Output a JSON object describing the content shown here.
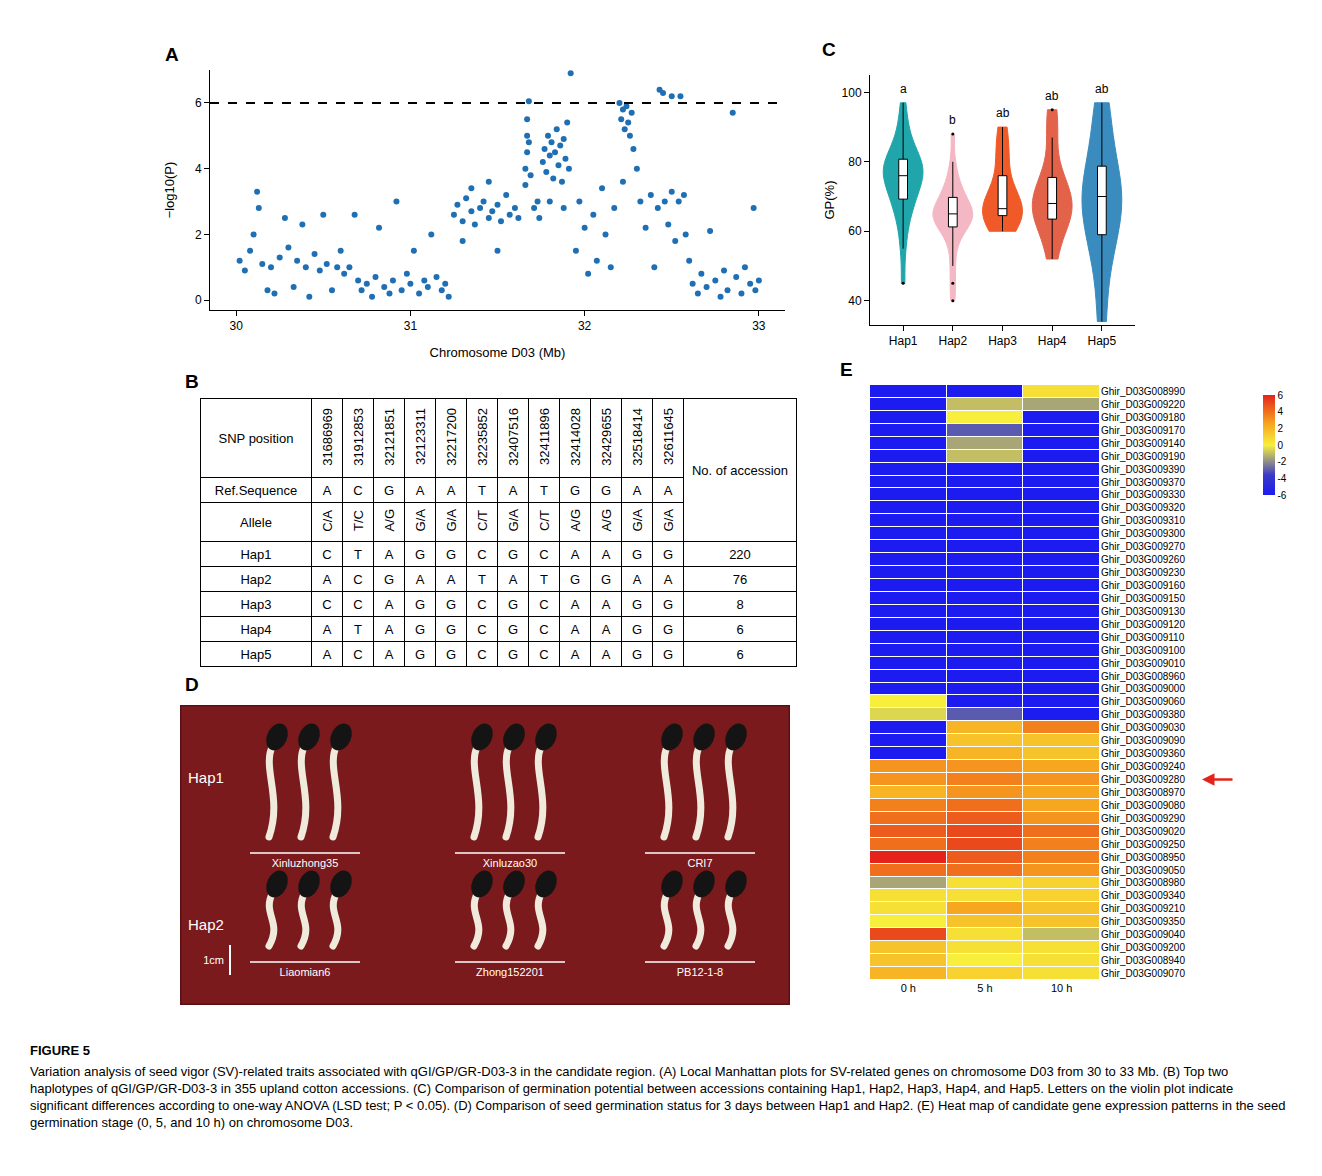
{
  "chart_data": [
    {
      "panel_label": "A",
      "type": "scatter",
      "x": [
        30.02,
        30.05,
        30.08,
        30.1,
        30.12,
        30.13,
        30.15,
        30.18,
        30.2,
        30.22,
        30.25,
        30.28,
        30.3,
        30.33,
        30.35,
        30.38,
        30.4,
        30.42,
        30.45,
        30.48,
        30.5,
        30.52,
        30.55,
        30.58,
        30.6,
        30.62,
        30.65,
        30.68,
        30.7,
        30.72,
        30.75,
        30.78,
        30.8,
        30.82,
        30.85,
        30.88,
        30.9,
        30.92,
        30.95,
        30.98,
        31.0,
        31.02,
        31.05,
        31.08,
        31.1,
        31.12,
        31.15,
        31.18,
        31.2,
        31.22,
        31.25,
        31.27,
        31.3,
        31.32,
        31.35,
        31.37,
        31.4,
        31.42,
        31.45,
        31.47,
        31.5,
        31.52,
        31.55,
        31.57,
        31.6,
        31.62,
        31.3,
        31.45,
        31.5,
        31.35,
        31.66,
        31.66,
        31.67,
        31.67,
        31.67,
        31.68,
        31.68,
        31.69,
        31.71,
        31.73,
        31.74,
        31.76,
        31.77,
        31.78,
        31.79,
        31.8,
        31.81,
        31.82,
        31.83,
        31.84,
        31.85,
        31.86,
        31.87,
        31.88,
        31.89,
        31.9,
        31.91,
        31.92,
        31.88,
        31.8,
        31.95,
        31.97,
        32.0,
        32.02,
        32.05,
        32.07,
        32.1,
        32.12,
        32.15,
        32.17,
        32.2,
        32.21,
        32.22,
        32.23,
        32.24,
        32.25,
        32.26,
        32.27,
        32.28,
        32.22,
        32.3,
        32.32,
        32.35,
        32.38,
        32.4,
        32.42,
        32.43,
        32.45,
        32.46,
        32.48,
        32.5,
        32.5,
        32.52,
        32.54,
        32.55,
        32.57,
        32.58,
        32.6,
        32.62,
        32.65,
        32.67,
        32.7,
        32.72,
        32.75,
        32.78,
        32.8,
        32.82,
        32.85,
        32.87,
        32.9,
        32.92,
        32.95,
        32.97,
        32.98,
        33.0
      ],
      "values": [
        1.2,
        0.9,
        1.5,
        2.0,
        3.3,
        2.8,
        1.1,
        0.3,
        1.0,
        0.2,
        1.3,
        2.5,
        1.6,
        0.4,
        1.2,
        2.3,
        1.0,
        0.1,
        1.4,
        0.9,
        2.6,
        1.1,
        0.3,
        1.0,
        1.5,
        0.8,
        1.0,
        2.6,
        0.6,
        0.3,
        0.5,
        0.1,
        0.7,
        2.2,
        0.4,
        0.2,
        0.6,
        3.0,
        0.3,
        0.8,
        0.5,
        1.5,
        0.2,
        0.6,
        0.4,
        2.0,
        0.7,
        0.3,
        0.5,
        0.1,
        2.6,
        2.9,
        2.4,
        3.1,
        2.7,
        2.3,
        2.8,
        3.0,
        2.5,
        2.7,
        2.9,
        2.4,
        3.2,
        2.6,
        2.8,
        2.5,
        1.8,
        3.6,
        1.5,
        3.4,
        3.5,
        4.0,
        4.5,
        5.0,
        5.5,
        6.05,
        4.8,
        3.8,
        2.8,
        3.0,
        2.5,
        4.2,
        4.6,
        3.9,
        5.0,
        4.4,
        4.8,
        3.7,
        4.5,
        5.2,
        4.1,
        4.7,
        3.6,
        4.9,
        4.3,
        5.4,
        4.0,
        6.9,
        2.8,
        3.0,
        1.5,
        3.0,
        2.2,
        0.8,
        2.6,
        1.2,
        3.4,
        2.0,
        1.0,
        2.8,
        6.0,
        5.5,
        5.8,
        5.2,
        5.9,
        5.4,
        5.0,
        5.7,
        4.6,
        3.6,
        4.0,
        3.0,
        2.2,
        3.2,
        1.0,
        2.8,
        6.4,
        6.3,
        3.0,
        2.3,
        6.2,
        3.3,
        1.8,
        3.0,
        6.2,
        3.2,
        2.0,
        1.2,
        0.5,
        0.2,
        0.8,
        0.4,
        2.1,
        0.6,
        0.1,
        0.9,
        0.3,
        5.7,
        0.7,
        0.2,
        1.0,
        0.5,
        2.8,
        0.3,
        0.6
      ],
      "color": "#1f6fb4",
      "marker": "circle",
      "xlabel": "Chromosome D03 (Mb)",
      "ylabel": "−log10(P)",
      "xlim": [
        29.85,
        33.15
      ],
      "xticks": [
        30,
        31,
        32,
        33
      ],
      "ylim": [
        -0.3,
        7.0
      ],
      "yticks": [
        0,
        2,
        4,
        6
      ],
      "grid": false,
      "reference_line": {
        "value": 6,
        "line_style": "dashed"
      }
    },
    {
      "panel_label": "C",
      "type": "violin",
      "categories": [
        "Hap1",
        "Hap2",
        "Hap3",
        "Hap4",
        "Hap5"
      ],
      "colors": [
        "#1fa5aa",
        "#f4b8c4",
        "#f05a28",
        "#e2634a",
        "#3a8cbf"
      ],
      "values": [
        [
          45,
          55,
          60,
          64,
          66,
          68,
          69,
          70,
          72,
          73,
          74,
          75,
          76,
          76,
          77,
          78,
          78,
          79,
          80,
          80,
          81,
          82,
          84,
          86,
          88,
          92,
          97
        ],
        [
          40,
          45,
          50,
          55,
          58,
          60,
          61,
          62,
          62,
          63,
          64,
          64,
          65,
          65,
          65,
          66,
          66,
          67,
          68,
          69,
          70,
          71,
          72,
          74,
          76,
          80,
          88
        ],
        [
          60,
          63,
          64,
          65,
          66,
          66,
          67,
          70,
          72,
          80,
          84,
          90
        ],
        [
          52,
          60,
          63,
          65,
          67,
          68,
          70,
          74,
          76,
          87,
          95
        ],
        [
          34,
          50,
          58,
          62,
          66,
          70,
          72,
          75,
          80,
          90,
          97
        ]
      ],
      "letters": [
        "a",
        "b",
        "ab",
        "ab",
        "ab"
      ],
      "ylabel": "GP(%)",
      "ylim": [
        33,
        105
      ],
      "yticks": [
        40,
        60,
        80,
        100
      ],
      "grid": false
    },
    {
      "panel_label": "E",
      "type": "heatmap",
      "rows": [
        "Ghir_D03G008990",
        "Ghir_D03G009220",
        "Ghir_D03G009180",
        "Ghir_D03G009170",
        "Ghir_D03G009140",
        "Ghir_D03G009190",
        "Ghir_D03G009390",
        "Ghir_D03G009370",
        "Ghir_D03G009330",
        "Ghir_D03G009320",
        "Ghir_D03G009310",
        "Ghir_D03G009300",
        "Ghir_D03G009270",
        "Ghir_D03G009260",
        "Ghir_D03G009230",
        "Ghir_D03G009160",
        "Ghir_D03G009150",
        "Ghir_D03G009130",
        "Ghir_D03G009120",
        "Ghir_D03G009110",
        "Ghir_D03G009100",
        "Ghir_D03G009010",
        "Ghir_D03G008960",
        "Ghir_D03G009000",
        "Ghir_D03G009060",
        "Ghir_D03G009380",
        "Ghir_D03G009030",
        "Ghir_D03G009090",
        "Ghir_D03G009360",
        "Ghir_D03G009240",
        "Ghir_D03G009280",
        "Ghir_D03G008970",
        "Ghir_D03G009080",
        "Ghir_D03G009290",
        "Ghir_D03G009020",
        "Ghir_D03G009250",
        "Ghir_D03G008950",
        "Ghir_D03G009050",
        "Ghir_D03G008980",
        "Ghir_D03G009340",
        "Ghir_D03G009210",
        "Ghir_D03G009350",
        "Ghir_D03G009040",
        "Ghir_D03G009200",
        "Ghir_D03G008940",
        "Ghir_D03G009070"
      ],
      "columns": [
        "0 h",
        "5 h",
        "10 h"
      ],
      "cells": [
        [
          -6,
          -6,
          0.5
        ],
        [
          -6,
          -1,
          -1.5
        ],
        [
          -6,
          0,
          -6
        ],
        [
          -6,
          -3,
          -6
        ],
        [
          -6,
          -1.5,
          -6
        ],
        [
          -6,
          -1,
          -6
        ],
        [
          -6,
          -6,
          -6
        ],
        [
          -6,
          -6,
          -6
        ],
        [
          -6,
          -6,
          -6
        ],
        [
          -6,
          -6,
          -6
        ],
        [
          -6,
          -6,
          -6
        ],
        [
          -6,
          -6,
          -6
        ],
        [
          -6,
          -6,
          -6
        ],
        [
          -6,
          -6,
          -6
        ],
        [
          -6,
          -6,
          -6
        ],
        [
          -6,
          -6,
          -6
        ],
        [
          -6,
          -6,
          -6
        ],
        [
          -6,
          -6,
          -6
        ],
        [
          -6,
          -6,
          -6
        ],
        [
          -6,
          -6,
          -6
        ],
        [
          -6,
          -6,
          -6
        ],
        [
          -6,
          -6,
          -6
        ],
        [
          -6,
          -6,
          -6
        ],
        [
          -6,
          -6,
          -6
        ],
        [
          0,
          -6,
          -6
        ],
        [
          -0.5,
          -3,
          -6
        ],
        [
          -6,
          2,
          3.5
        ],
        [
          -6,
          1.5,
          1.5
        ],
        [
          -6,
          2,
          1.5
        ],
        [
          3,
          3,
          2.5
        ],
        [
          3,
          3.5,
          3
        ],
        [
          2,
          3,
          2.5
        ],
        [
          3.5,
          4,
          2.5
        ],
        [
          4,
          4.5,
          3
        ],
        [
          4.5,
          5,
          4
        ],
        [
          4,
          5,
          3.5
        ],
        [
          6,
          4.5,
          3.5
        ],
        [
          4,
          4,
          3
        ],
        [
          -1.5,
          0.5,
          1
        ],
        [
          0.5,
          0.5,
          1
        ],
        [
          0.5,
          2.5,
          1.5
        ],
        [
          0,
          1.5,
          1.5
        ],
        [
          5,
          0.5,
          -1
        ],
        [
          1.5,
          0.5,
          0.5
        ],
        [
          1.5,
          0,
          0.5
        ],
        [
          2,
          1,
          0.5
        ]
      ],
      "colorbar_range": [
        -6,
        6
      ],
      "colorbar_ticks": [
        -6,
        -4,
        -2,
        0,
        2,
        4,
        6
      ],
      "highlight": "Ghir_D03G009280"
    }
  ],
  "table": {
    "panel_label": "B",
    "header": {
      "first": "SNP position",
      "positions": [
        "31686969",
        "31912853",
        "32121851",
        "32123311",
        "32217200",
        "32235852",
        "32407516",
        "32411896",
        "32414028",
        "32429655",
        "32518414",
        "32611645"
      ],
      "last": "No. of accession"
    },
    "reference": {
      "label": "Ref.Sequence",
      "cells": [
        "A",
        "C",
        "G",
        "A",
        "A",
        "T",
        "A",
        "T",
        "G",
        "G",
        "A",
        "A"
      ]
    },
    "allele": {
      "label": "Allele",
      "cells": [
        "C/A",
        "T/C",
        "A/G",
        "G/A",
        "G/A",
        "C/T",
        "G/A",
        "C/T",
        "A/G",
        "A/G",
        "G/A",
        "G/A"
      ]
    },
    "haplotypes": [
      {
        "label": "Hap1",
        "cells": [
          "C",
          "T",
          "A",
          "G",
          "G",
          "C",
          "G",
          "C",
          "A",
          "A",
          "G",
          "G"
        ],
        "count": 220
      },
      {
        "label": "Hap2",
        "cells": [
          "A",
          "C",
          "G",
          "A",
          "A",
          "T",
          "A",
          "T",
          "G",
          "G",
          "A",
          "A"
        ],
        "count": 76
      },
      {
        "label": "Hap3",
        "cells": [
          "C",
          "C",
          "A",
          "G",
          "G",
          "C",
          "G",
          "C",
          "A",
          "A",
          "G",
          "G"
        ],
        "count": 8
      },
      {
        "label": "Hap4",
        "cells": [
          "A",
          "T",
          "A",
          "G",
          "G",
          "C",
          "G",
          "C",
          "A",
          "A",
          "G",
          "G"
        ],
        "count": 6
      },
      {
        "label": "Hap5",
        "cells": [
          "A",
          "C",
          "A",
          "G",
          "G",
          "C",
          "G",
          "C",
          "A",
          "A",
          "G",
          "G"
        ],
        "count": 6
      }
    ]
  },
  "photo": {
    "panel_label": "D",
    "rows": [
      {
        "label": "Hap1",
        "varieties": [
          "Xinluzhong35",
          "Xinluzao30",
          "CRI7"
        ]
      },
      {
        "label": "Hap2",
        "varieties": [
          "Liaomian6",
          "Zhong152201",
          "PB12-1-8"
        ]
      }
    ],
    "scale": "1cm"
  },
  "caption": {
    "figure": "FIGURE 5",
    "text": "Variation analysis of seed vigor (SV)-related traits associated with qGI/GP/GR-D03-3 in the candidate region. (A) Local Manhattan plots for SV-related genes on chromosome D03 from 30 to 33 Mb. (B) Top two haplotypes of qGI/GP/GR-D03-3 in 355 upland cotton accessions. (C) Comparison of germination potential between accessions containing Hap1, Hap2, Hap3, Hap4, and Hap5. Letters on the violin plot indicate significant differences according to one-way ANOVA (LSD test; P < 0.05). (D) Comparison of seed germination status for 3 days between Hap1 and Hap2. (E) Heat map of candidate gene expression patterns in the seed germination stage (0, 5, and 10 h) on chromosome D03."
  }
}
